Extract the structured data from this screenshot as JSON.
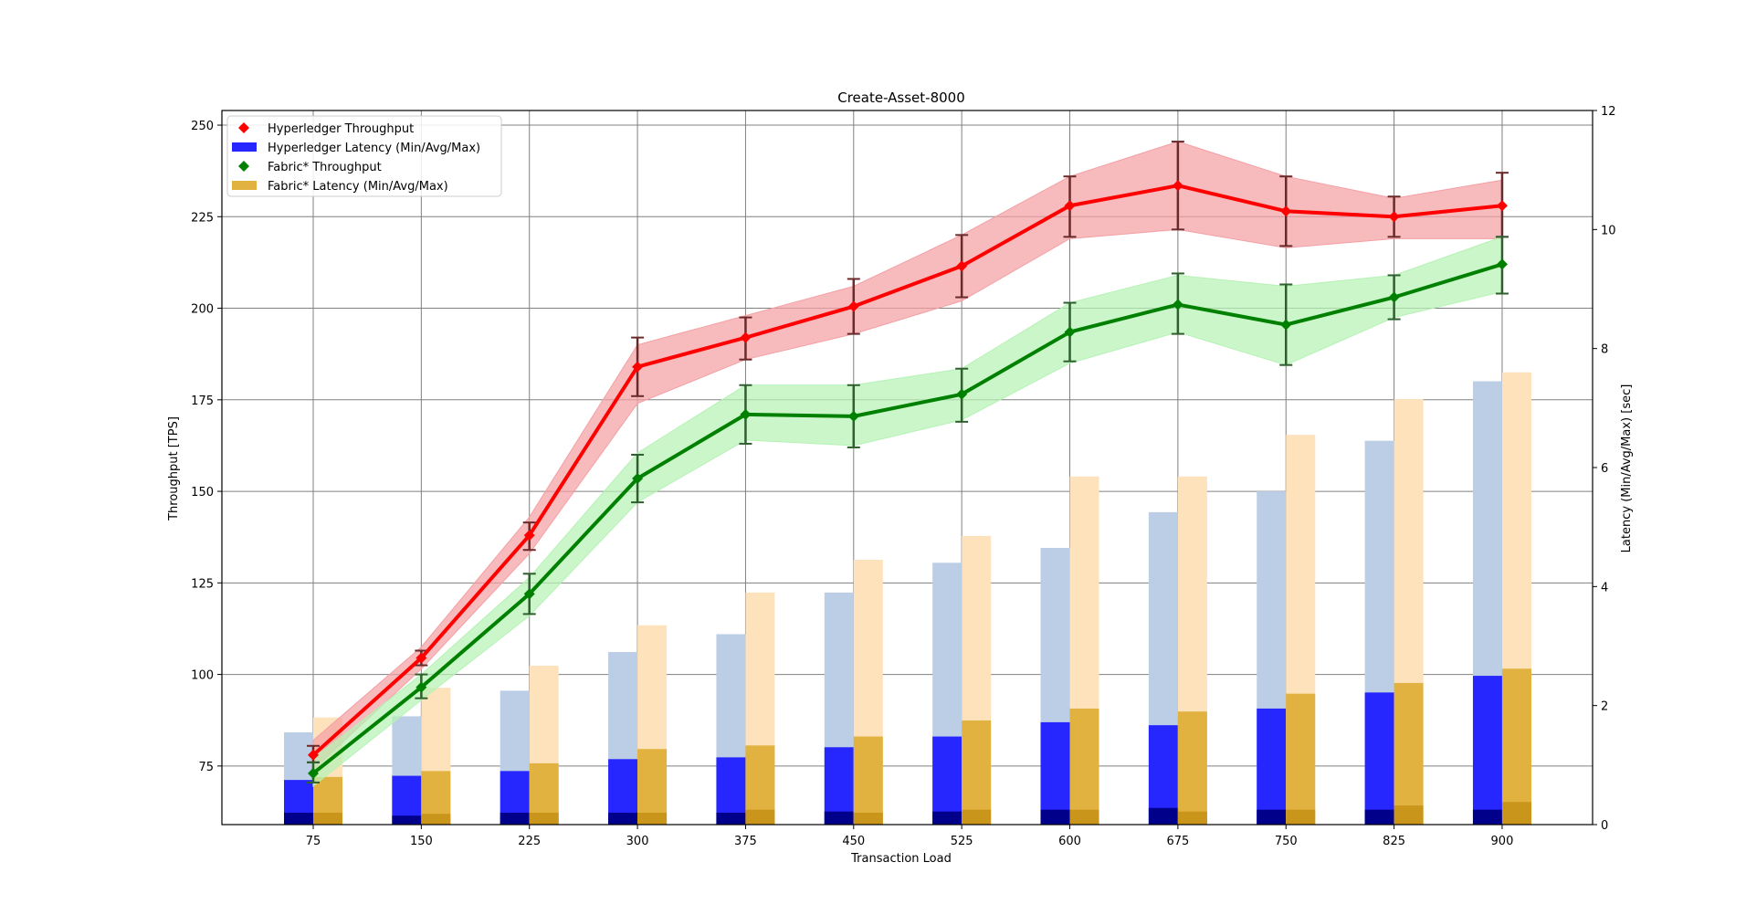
{
  "chart_data": {
    "type": "line",
    "title": "Create-Asset-8000",
    "xlabel": "Transaction Load",
    "ylabel": "Throughput [TPS]",
    "ylabel_right": "Latency (Min/Avg/Max) [sec]",
    "categories": [
      "75",
      "150",
      "225",
      "300",
      "375",
      "450",
      "525",
      "600",
      "675",
      "750",
      "825",
      "900"
    ],
    "ylim": [
      59,
      254
    ],
    "ylim_right": [
      0,
      12
    ],
    "yticks": [
      75,
      100,
      125,
      150,
      175,
      200,
      225,
      250
    ],
    "yticks_right": [
      0,
      2,
      4,
      6,
      8,
      10,
      12
    ],
    "grid": true,
    "legend_position": "upper-left",
    "series": [
      {
        "name": "Hyperledger Throughput",
        "kind": "line",
        "color": "#ff0000",
        "band_color": "#f4a0a4",
        "values": [
          78,
          104.5,
          138,
          184,
          192,
          200.5,
          211.5,
          228,
          233.5,
          226.5,
          225,
          228
        ],
        "band_low": [
          74,
          101.5,
          133,
          174,
          186,
          193,
          202,
          219,
          221.5,
          216.5,
          219,
          219
        ],
        "band_high": [
          82,
          107.5,
          143,
          190,
          198,
          206,
          220,
          236,
          245.5,
          236,
          230,
          235
        ],
        "err_low": [
          76,
          102.5,
          134,
          176,
          186,
          193,
          203,
          219.5,
          221.5,
          217,
          219.5,
          219.5
        ],
        "err_high": [
          80.5,
          106.5,
          141.5,
          192,
          197.5,
          208,
          220,
          236,
          245.5,
          236,
          230.5,
          237
        ]
      },
      {
        "name": "Hyperledger Latency (Min/Avg/Max)",
        "kind": "bar",
        "color": "#2626ff",
        "min_color": "#00008b",
        "max_color": "#bcceE6",
        "min": [
          0.2,
          0.15,
          0.2,
          0.2,
          0.2,
          0.22,
          0.22,
          0.25,
          0.28,
          0.25,
          0.25,
          0.25
        ],
        "avg": [
          0.75,
          0.82,
          0.9,
          1.1,
          1.13,
          1.3,
          1.48,
          1.72,
          1.67,
          1.95,
          2.22,
          2.5
        ],
        "max": [
          1.55,
          1.82,
          2.25,
          2.9,
          3.2,
          3.9,
          4.4,
          4.65,
          5.25,
          5.6,
          6.45,
          7.45
        ]
      },
      {
        "name": "Fabric* Throughput",
        "kind": "line",
        "color": "#008000",
        "band_color": "#b6f2b6",
        "values": [
          73,
          96.5,
          122,
          153.5,
          171,
          170.5,
          176.5,
          193.5,
          201,
          195.5,
          203,
          212
        ],
        "band_low": [
          69.5,
          93,
          116,
          147,
          164,
          162.5,
          169.5,
          185,
          193.5,
          184.5,
          197.5,
          204.5
        ],
        "band_high": [
          77,
          100,
          126.5,
          160.5,
          179,
          179,
          183.5,
          201.5,
          209,
          206,
          209,
          219.5
        ],
        "err_low": [
          70.5,
          93.5,
          116.5,
          147,
          163,
          162,
          169,
          185.5,
          193,
          184.5,
          197,
          204
        ],
        "err_high": [
          76,
          100,
          127.5,
          160,
          179,
          179,
          183.5,
          201.5,
          209.5,
          206.5,
          209,
          219.5
        ]
      },
      {
        "name": "Fabric* Latency (Min/Avg/Max)",
        "kind": "bar",
        "color": "#e1b23f",
        "min_color": "#c9951a",
        "max_color": "#fde2bb",
        "min": [
          0.2,
          0.18,
          0.2,
          0.2,
          0.25,
          0.2,
          0.25,
          0.25,
          0.22,
          0.25,
          0.32,
          0.38
        ],
        "avg": [
          0.8,
          0.9,
          1.03,
          1.27,
          1.33,
          1.48,
          1.75,
          1.95,
          1.9,
          2.2,
          2.38,
          2.62
        ],
        "max": [
          1.8,
          2.3,
          2.67,
          3.35,
          3.9,
          4.45,
          4.85,
          5.85,
          5.85,
          6.55,
          7.15,
          7.6
        ]
      }
    ]
  }
}
